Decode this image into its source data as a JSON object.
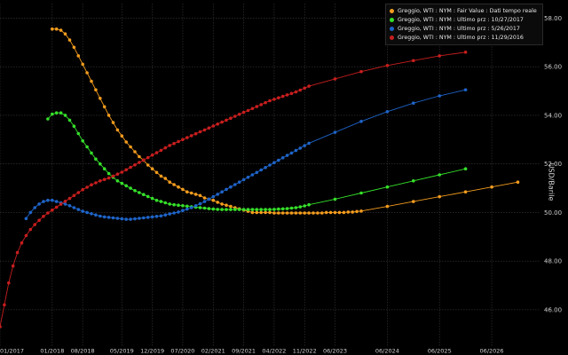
{
  "colors": {
    "background": "#000000",
    "grid": "#3a3a3a",
    "axis_text": "#d0d0d0"
  },
  "chart_data": {
    "type": "line",
    "title": "",
    "xlabel": "",
    "ylabel": "USD/Barile",
    "grid": true,
    "legend_position": "top-right",
    "y_axis_side": "right",
    "ylim": [
      44.5,
      58.6
    ],
    "yticks": [
      "46.00",
      "48.00",
      "50.00",
      "52.00",
      "54.00",
      "56.00",
      "58.00"
    ],
    "xlim": [
      "2017-01",
      "2027-05"
    ],
    "xticks": [
      "01/2017",
      "01/2018",
      "08/2018",
      "05/2019",
      "12/2019",
      "07/2020",
      "02/2021",
      "09/2021",
      "04/2022",
      "11/2022",
      "06/2023",
      "06/2024",
      "06/2025",
      "06/2026"
    ],
    "series": [
      {
        "name": "Greggio, WTI : NYM : Fair Value : Dati tempo reale",
        "color": "#f39c1e",
        "x": [
          "2018-01",
          "2018-02",
          "2018-03",
          "2018-04",
          "2018-05",
          "2018-06",
          "2018-07",
          "2018-08",
          "2018-09",
          "2018-10",
          "2018-11",
          "2018-12",
          "2019-01",
          "2019-02",
          "2019-03",
          "2019-04",
          "2019-05",
          "2019-06",
          "2019-07",
          "2019-08",
          "2019-09",
          "2019-10",
          "2019-11",
          "2019-12",
          "2020-01",
          "2020-02",
          "2020-03",
          "2020-04",
          "2020-05",
          "2020-06",
          "2020-07",
          "2020-08",
          "2020-09",
          "2020-10",
          "2020-11",
          "2020-12",
          "2021-01",
          "2021-02",
          "2021-03",
          "2021-04",
          "2021-05",
          "2021-06",
          "2021-07",
          "2021-08",
          "2021-09",
          "2021-10",
          "2021-11",
          "2021-12",
          "2022-01",
          "2022-02",
          "2022-03",
          "2022-04",
          "2022-05",
          "2022-06",
          "2022-07",
          "2022-08",
          "2022-09",
          "2022-10",
          "2022-11",
          "2022-12",
          "2023-01",
          "2023-02",
          "2023-03",
          "2023-04",
          "2023-05",
          "2023-06",
          "2023-07",
          "2023-08",
          "2023-09",
          "2023-10",
          "2023-11",
          "2023-12",
          "2024-06",
          "2024-12",
          "2025-06",
          "2025-12",
          "2026-06",
          "2026-12"
        ],
        "values": [
          57.55,
          57.55,
          57.5,
          57.35,
          57.1,
          56.8,
          56.45,
          56.1,
          55.75,
          55.4,
          55.05,
          54.7,
          54.35,
          54.0,
          53.7,
          53.4,
          53.15,
          52.9,
          52.7,
          52.5,
          52.3,
          52.15,
          51.95,
          51.8,
          51.65,
          51.5,
          51.4,
          51.25,
          51.15,
          51.05,
          50.95,
          50.85,
          50.8,
          50.75,
          50.7,
          50.6,
          50.55,
          50.5,
          50.42,
          50.35,
          50.3,
          50.25,
          50.2,
          50.15,
          50.1,
          50.05,
          50.0,
          50.0,
          50.0,
          50.0,
          50.0,
          49.98,
          49.98,
          49.98,
          49.98,
          49.98,
          49.98,
          49.98,
          49.98,
          49.98,
          49.98,
          49.98,
          49.98,
          50.0,
          50.0,
          50.0,
          50.0,
          50.0,
          50.02,
          50.02,
          50.04,
          50.06,
          50.25,
          50.45,
          50.65,
          50.85,
          51.05,
          51.25
        ]
      },
      {
        "name": "Greggio, WTI : NYM : Ultimo prz : 10/27/2017",
        "color": "#35e02a",
        "x": [
          "2017-12",
          "2018-01",
          "2018-02",
          "2018-03",
          "2018-04",
          "2018-05",
          "2018-06",
          "2018-07",
          "2018-08",
          "2018-09",
          "2018-10",
          "2018-11",
          "2018-12",
          "2019-01",
          "2019-02",
          "2019-03",
          "2019-04",
          "2019-05",
          "2019-06",
          "2019-07",
          "2019-08",
          "2019-09",
          "2019-10",
          "2019-11",
          "2019-12",
          "2020-01",
          "2020-02",
          "2020-03",
          "2020-04",
          "2020-05",
          "2020-06",
          "2020-07",
          "2020-08",
          "2020-09",
          "2020-10",
          "2020-11",
          "2020-12",
          "2021-01",
          "2021-02",
          "2021-03",
          "2021-04",
          "2021-05",
          "2021-06",
          "2021-07",
          "2021-08",
          "2021-09",
          "2021-10",
          "2021-11",
          "2021-12",
          "2022-01",
          "2022-02",
          "2022-03",
          "2022-04",
          "2022-05",
          "2022-06",
          "2022-07",
          "2022-08",
          "2022-09",
          "2022-10",
          "2022-11",
          "2022-12",
          "2023-06",
          "2023-12",
          "2024-06",
          "2024-12",
          "2025-06",
          "2025-12"
        ],
        "values": [
          53.85,
          54.05,
          54.1,
          54.1,
          54.0,
          53.8,
          53.55,
          53.25,
          52.95,
          52.7,
          52.45,
          52.2,
          52.0,
          51.8,
          51.6,
          51.45,
          51.3,
          51.2,
          51.1,
          51.0,
          50.9,
          50.82,
          50.74,
          50.66,
          50.58,
          50.5,
          50.45,
          50.4,
          50.35,
          50.32,
          50.3,
          50.28,
          50.26,
          50.24,
          50.22,
          50.2,
          50.18,
          50.16,
          50.14,
          50.13,
          50.12,
          50.12,
          50.12,
          50.12,
          50.12,
          50.12,
          50.12,
          50.12,
          50.12,
          50.12,
          50.12,
          50.12,
          50.13,
          50.14,
          50.15,
          50.16,
          50.18,
          50.2,
          50.23,
          50.27,
          50.32,
          50.55,
          50.8,
          51.05,
          51.3,
          51.55,
          51.8
        ]
      },
      {
        "name": "Greggio, WTI : NYM : Ultimo prz : 5/26/2017",
        "color": "#1e64c8",
        "x": [
          "2017-07",
          "2017-08",
          "2017-09",
          "2017-10",
          "2017-11",
          "2017-12",
          "2018-01",
          "2018-02",
          "2018-03",
          "2018-04",
          "2018-05",
          "2018-06",
          "2018-07",
          "2018-08",
          "2018-09",
          "2018-10",
          "2018-11",
          "2018-12",
          "2019-01",
          "2019-02",
          "2019-03",
          "2019-04",
          "2019-05",
          "2019-06",
          "2019-07",
          "2019-08",
          "2019-09",
          "2019-10",
          "2019-11",
          "2019-12",
          "2020-01",
          "2020-02",
          "2020-03",
          "2020-04",
          "2020-05",
          "2020-06",
          "2020-07",
          "2020-08",
          "2020-09",
          "2020-10",
          "2020-11",
          "2020-12",
          "2021-01",
          "2021-02",
          "2021-03",
          "2021-04",
          "2021-05",
          "2021-06",
          "2021-07",
          "2021-08",
          "2021-09",
          "2021-10",
          "2021-11",
          "2021-12",
          "2022-01",
          "2022-02",
          "2022-03",
          "2022-04",
          "2022-05",
          "2022-06",
          "2022-07",
          "2022-08",
          "2022-09",
          "2022-10",
          "2022-11",
          "2022-12",
          "2023-06",
          "2023-12",
          "2024-06",
          "2024-12",
          "2025-06",
          "2025-12"
        ],
        "values": [
          49.75,
          50.0,
          50.2,
          50.35,
          50.45,
          50.5,
          50.5,
          50.45,
          50.4,
          50.35,
          50.28,
          50.2,
          50.12,
          50.05,
          50.0,
          49.95,
          49.9,
          49.85,
          49.82,
          49.8,
          49.78,
          49.76,
          49.74,
          49.72,
          49.72,
          49.74,
          49.76,
          49.78,
          49.8,
          49.82,
          49.84,
          49.86,
          49.9,
          49.94,
          49.98,
          50.02,
          50.08,
          50.14,
          50.2,
          50.28,
          50.36,
          50.45,
          50.55,
          50.65,
          50.75,
          50.85,
          50.95,
          51.05,
          51.15,
          51.25,
          51.35,
          51.45,
          51.55,
          51.65,
          51.75,
          51.85,
          51.95,
          52.05,
          52.15,
          52.25,
          52.35,
          52.45,
          52.55,
          52.65,
          52.75,
          52.85,
          53.3,
          53.75,
          54.15,
          54.5,
          54.8,
          55.05
        ]
      },
      {
        "name": "Greggio, WTI : NYM : Ultimo prz : 11/29/2016",
        "color": "#c81e1e",
        "x": [
          "2017-01",
          "2017-02",
          "2017-03",
          "2017-04",
          "2017-05",
          "2017-06",
          "2017-07",
          "2017-08",
          "2017-09",
          "2017-10",
          "2017-11",
          "2017-12",
          "2018-01",
          "2018-02",
          "2018-03",
          "2018-04",
          "2018-05",
          "2018-06",
          "2018-07",
          "2018-08",
          "2018-09",
          "2018-10",
          "2018-11",
          "2018-12",
          "2019-01",
          "2019-02",
          "2019-03",
          "2019-04",
          "2019-05",
          "2019-06",
          "2019-07",
          "2019-08",
          "2019-09",
          "2019-10",
          "2019-11",
          "2019-12",
          "2020-01",
          "2020-02",
          "2020-03",
          "2020-04",
          "2020-05",
          "2020-06",
          "2020-07",
          "2020-08",
          "2020-09",
          "2020-10",
          "2020-11",
          "2020-12",
          "2021-01",
          "2021-02",
          "2021-03",
          "2021-04",
          "2021-05",
          "2021-06",
          "2021-07",
          "2021-08",
          "2021-09",
          "2021-10",
          "2021-11",
          "2021-12",
          "2022-01",
          "2022-02",
          "2022-03",
          "2022-04",
          "2022-05",
          "2022-06",
          "2022-07",
          "2022-08",
          "2022-09",
          "2022-10",
          "2022-11",
          "2022-12",
          "2023-06",
          "2023-12",
          "2024-06",
          "2024-12",
          "2025-06",
          "2025-12"
        ],
        "values": [
          45.3,
          46.2,
          47.1,
          47.8,
          48.35,
          48.75,
          49.05,
          49.3,
          49.5,
          49.68,
          49.84,
          49.98,
          50.1,
          50.22,
          50.34,
          50.46,
          50.58,
          50.7,
          50.82,
          50.94,
          51.04,
          51.14,
          51.22,
          51.3,
          51.36,
          51.42,
          51.5,
          51.58,
          51.66,
          51.76,
          51.86,
          51.96,
          52.06,
          52.16,
          52.26,
          52.36,
          52.46,
          52.56,
          52.66,
          52.76,
          52.84,
          52.92,
          53.0,
          53.08,
          53.16,
          53.24,
          53.32,
          53.4,
          53.48,
          53.56,
          53.64,
          53.72,
          53.8,
          53.88,
          53.96,
          54.04,
          54.12,
          54.2,
          54.28,
          54.36,
          54.44,
          54.52,
          54.6,
          54.66,
          54.72,
          54.78,
          54.84,
          54.9,
          54.96,
          55.04,
          55.12,
          55.2,
          55.5,
          55.8,
          56.05,
          56.25,
          56.45,
          56.6
        ]
      }
    ]
  }
}
